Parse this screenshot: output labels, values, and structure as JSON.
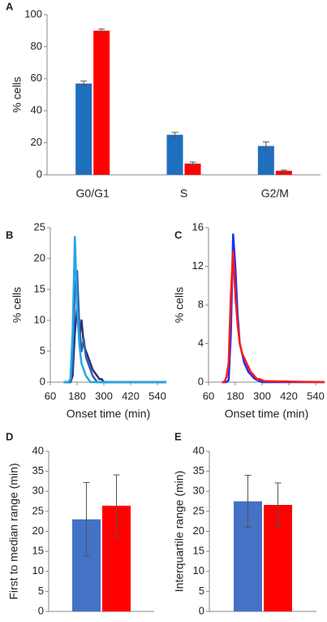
{
  "chart_data": [
    {
      "type": "bar",
      "label": "A",
      "ylabel": "% cells",
      "categories": [
        "G0/G1",
        "S",
        "G2/M"
      ],
      "series": [
        {
          "color": "#1f6fbf",
          "values": [
            57,
            25,
            18
          ],
          "errors": [
            1.5,
            1.5,
            2.5
          ]
        },
        {
          "color": "#ff0000",
          "values": [
            90,
            7,
            2.5
          ],
          "errors": [
            1,
            1,
            0.5
          ]
        }
      ],
      "ylim": [
        0,
        100
      ],
      "yticks": [
        0,
        20,
        40,
        60,
        80,
        100
      ]
    },
    {
      "type": "line",
      "label": "B",
      "ylabel": "% cells",
      "xlabel": "Onset time (min)",
      "x": [
        120,
        130,
        140,
        150,
        160,
        170,
        180,
        190,
        200,
        210,
        220,
        230,
        240,
        250,
        260,
        270,
        280,
        290,
        300,
        310,
        320,
        580
      ],
      "series": [
        {
          "color": "#2b2f7a",
          "values": [
            0,
            0,
            0,
            0,
            1,
            8,
            12,
            7,
            10,
            6,
            5,
            4,
            3,
            2,
            1.5,
            1,
            0.5,
            0.5,
            0,
            0,
            0,
            0
          ]
        },
        {
          "color": "#2f5fa8",
          "values": [
            0,
            0,
            0,
            0,
            3,
            15,
            18,
            9,
            5,
            7,
            4,
            3,
            2,
            1,
            0.5,
            0,
            0,
            0,
            0,
            0,
            0,
            0
          ]
        },
        {
          "color": "#22a8e6",
          "values": [
            0,
            0,
            0,
            0.5,
            8,
            23.5,
            12,
            6,
            3,
            2,
            1,
            0.5,
            0,
            0,
            0,
            0,
            0,
            0,
            0,
            0,
            0,
            0
          ]
        }
      ],
      "xlim": [
        60,
        580
      ],
      "xticks": [
        60,
        180,
        300,
        420,
        540
      ],
      "ylim": [
        0,
        25
      ],
      "yticks": [
        0,
        5,
        10,
        15,
        20,
        25
      ]
    },
    {
      "type": "line",
      "label": "C",
      "ylabel": "% cells",
      "xlabel": "Onset time (min)",
      "x": [
        120,
        130,
        140,
        150,
        160,
        170,
        180,
        190,
        200,
        210,
        220,
        230,
        240,
        250,
        260,
        270,
        280,
        290,
        300,
        310,
        320,
        580
      ],
      "series": [
        {
          "color": "#1f2ff0",
          "values": [
            0,
            0,
            0,
            0.2,
            5,
            15.3,
            12,
            7,
            4,
            3,
            2,
            1.5,
            1,
            0.8,
            0.5,
            0.3,
            0.2,
            0.1,
            0,
            0,
            0,
            0
          ]
        },
        {
          "color": "#ff1a1a",
          "values": [
            0,
            0,
            0.5,
            2,
            9,
            13.5,
            9,
            6,
            4,
            3,
            2.5,
            2,
            1.5,
            1,
            0.8,
            0.5,
            0.3,
            0.3,
            0.2,
            0.1,
            0.1,
            0
          ]
        }
      ],
      "xlim": [
        60,
        580
      ],
      "xticks": [
        60,
        180,
        300,
        420,
        540
      ],
      "ylim": [
        0,
        16
      ],
      "yticks": [
        0,
        4,
        8,
        12,
        16
      ]
    },
    {
      "type": "bar",
      "label": "D",
      "ylabel": "First to median range (min)",
      "series": [
        {
          "color": "#4472c4",
          "values": [
            23
          ],
          "errors": [
            9.2
          ]
        },
        {
          "color": "#ff0000",
          "values": [
            26.4
          ],
          "errors": [
            7.7
          ]
        }
      ],
      "ylim": [
        0,
        40
      ],
      "yticks": [
        0,
        5,
        10,
        15,
        20,
        25,
        30,
        35,
        40
      ]
    },
    {
      "type": "bar",
      "label": "E",
      "ylabel": "Interquartile range (min)",
      "series": [
        {
          "color": "#4472c4",
          "values": [
            27.5
          ],
          "errors": [
            6.5
          ]
        },
        {
          "color": "#ff0000",
          "values": [
            26.6
          ],
          "errors": [
            5.5
          ]
        }
      ],
      "ylim": [
        0,
        40
      ],
      "yticks": [
        0,
        5,
        10,
        15,
        20,
        25,
        30,
        35,
        40
      ]
    }
  ]
}
